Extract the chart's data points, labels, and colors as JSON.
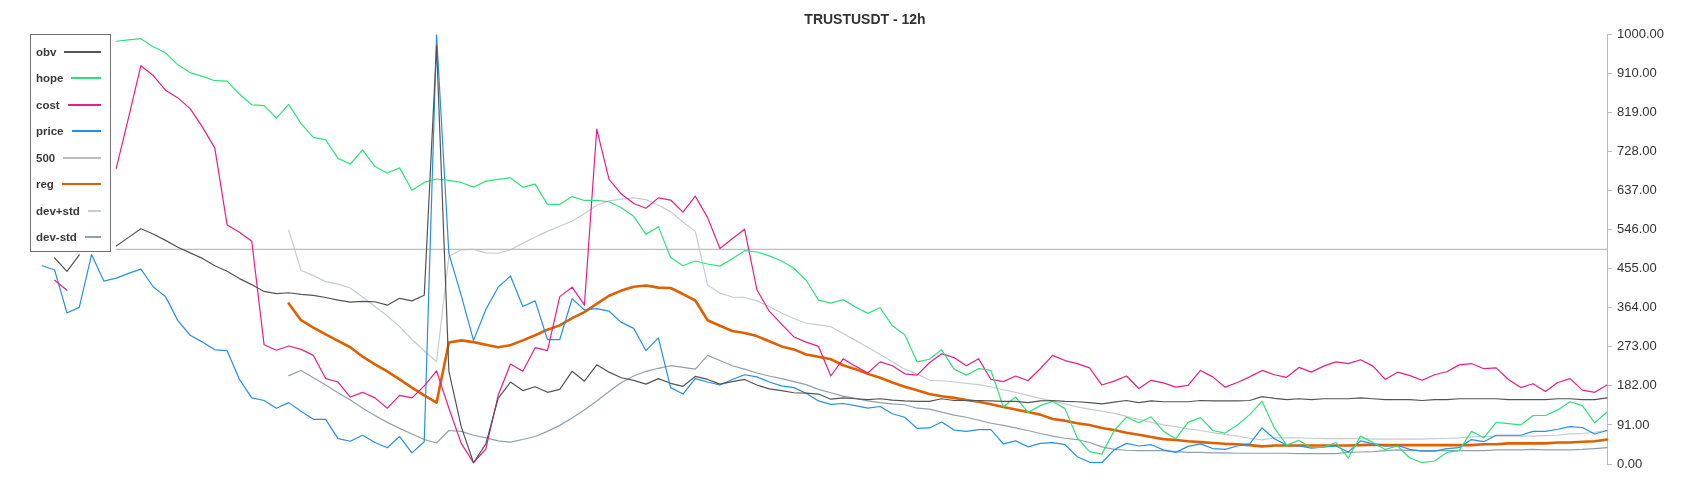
{
  "chart_data": {
    "type": "line",
    "title": "TRUSTUSDT - 12h",
    "legend": "top left",
    "tick_labels": "y",
    "categories": [
      null,
      null,
      null,
      null,
      null,
      null,
      null,
      null,
      null,
      null,
      null,
      null,
      null,
      null,
      null,
      null,
      null,
      null,
      null,
      null,
      null,
      null,
      null,
      null,
      null,
      null,
      null,
      null,
      null,
      null,
      null,
      null,
      null,
      null,
      null,
      null,
      null,
      null,
      null,
      null,
      null,
      null,
      null,
      null,
      null,
      null,
      null,
      null,
      null,
      null,
      null,
      null,
      null,
      null,
      null,
      null,
      null,
      null,
      null,
      null,
      null,
      null,
      null,
      null,
      null,
      null,
      null,
      null,
      null,
      null,
      null,
      null,
      null,
      null,
      null,
      null,
      null,
      null,
      null,
      null,
      null,
      null,
      null,
      null,
      null,
      null,
      null,
      null,
      null,
      null,
      null,
      null,
      null,
      null,
      null,
      null,
      null,
      null,
      null,
      null,
      null,
      null,
      null,
      null,
      null,
      null,
      null,
      null,
      null,
      null,
      null,
      null,
      null,
      null,
      null,
      null,
      null,
      null,
      null,
      null,
      null,
      null,
      null,
      null,
      null,
      null,
      null,
      null,
      null
    ],
    "ylim": [
      0,
      1000
    ],
    "yticks": [
      {
        "value": 0,
        "label": "0.00"
      },
      {
        "value": 91,
        "label": "91.00"
      },
      {
        "value": 182,
        "label": "182.00"
      },
      {
        "value": 273,
        "label": "273.00"
      },
      {
        "value": 364,
        "label": "364.00"
      },
      {
        "value": 455,
        "label": "455.00"
      },
      {
        "value": 546,
        "label": "546.00"
      },
      {
        "value": 637,
        "label": "637.00"
      },
      {
        "value": 728,
        "label": "728.00"
      },
      {
        "value": 819,
        "label": "819.00"
      },
      {
        "value": 910,
        "label": "910.00"
      },
      {
        "value": 1000,
        "label": "1000.00"
      }
    ],
    "series": [
      {
        "name": "obv",
        "color": "#545454",
        "values": [
          null,
          null,
          480,
          449,
          487,
          null,
          null,
          508,
          528,
          548,
          536,
          521,
          505,
          492,
          479,
          462,
          449,
          432,
          418,
          402,
          397,
          399,
          395,
          393,
          388,
          382,
          377,
          379,
          378,
          370,
          386,
          380,
          393,
          975,
          216,
          87,
          3,
          47,
          153,
          191,
          171,
          180,
          167,
          174,
          216,
          193,
          231,
          214,
          201,
          195,
          186,
          199,
          188,
          181,
          204,
          197,
          186,
          192,
          197,
          184,
          175,
          171,
          166,
          165,
          163,
          151,
          154,
          152,
          150,
          152,
          149,
          147,
          146,
          146,
          152,
          148,
          148,
          148,
          147,
          146,
          146,
          143,
          147,
          148,
          146,
          145,
          143,
          140,
          144,
          148,
          143,
          147,
          145,
          145,
          145,
          148,
          147,
          147,
          147,
          148,
          157,
          153,
          150,
          152,
          150,
          152,
          152,
          152,
          154,
          152,
          150,
          150,
          150,
          148,
          150,
          150,
          152,
          152,
          152,
          152,
          150,
          150,
          150,
          150,
          152,
          152,
          150,
          150,
          154
        ]
      },
      {
        "name": "hope",
        "color": "#2ee27a",
        "values": [
          null,
          null,
          null,
          null,
          null,
          null,
          null,
          985,
          988,
          991,
          972,
          958,
          930,
          912,
          903,
          893,
          892,
          862,
          837,
          835,
          806,
          838,
          793,
          761,
          755,
          712,
          699,
          732,
          693,
          678,
          690,
          638,
          656,
          664,
          661,
          656,
          645,
          659,
          663,
          667,
          645,
          652,
          605,
          605,
          623,
          614,
          614,
          611,
          597,
          577,
          535,
          553,
          481,
          462,
          473,
          466,
          461,
          478,
          497,
          494,
          485,
          473,
          456,
          428,
          382,
          375,
          383,
          366,
          351,
          364,
          322,
          301,
          238,
          244,
          266,
          221,
          207,
          222,
          218,
          133,
          156,
          120,
          136,
          146,
          129,
          61,
          29,
          23,
          78,
          109,
          96,
          110,
          76,
          59,
          97,
          108,
          78,
          72,
          91,
          115,
          146,
          84,
          44,
          55,
          38,
          39,
          50,
          14,
          65,
          50,
          34,
          42,
          14,
          3,
          7,
          27,
          31,
          76,
          61,
          97,
          94,
          91,
          113,
          113,
          126,
          145,
          136,
          96,
          121
        ]
      },
      {
        "name": "cost",
        "color": "#e91e84",
        "values": [
          null,
          null,
          428,
          405,
          null,
          null,
          null,
          689,
          807,
          928,
          905,
          871,
          853,
          828,
          785,
          736,
          557,
          540,
          519,
          278,
          265,
          275,
          267,
          253,
          199,
          191,
          156,
          167,
          154,
          130,
          160,
          154,
          182,
          217,
          130,
          48,
          3,
          35,
          160,
          233,
          216,
          271,
          264,
          390,
          412,
          370,
          780,
          663,
          629,
          607,
          596,
          620,
          615,
          587,
          624,
          574,
          502,
          525,
          547,
          406,
          356,
          326,
          296,
          284,
          274,
          205,
          245,
          228,
          212,
          238,
          229,
          210,
          207,
          236,
          257,
          248,
          229,
          245,
          197,
          192,
          205,
          194,
          222,
          253,
          241,
          234,
          224,
          184,
          193,
          205,
          176,
          195,
          189,
          179,
          183,
          218,
          203,
          179,
          190,
          203,
          218,
          208,
          202,
          225,
          214,
          228,
          238,
          234,
          243,
          228,
          197,
          214,
          206,
          195,
          208,
          215,
          231,
          234,
          222,
          224,
          197,
          178,
          187,
          169,
          190,
          199,
          172,
          167,
          184
        ]
      },
      {
        "name": "price",
        "color": "#2590e8",
        "values": [
          null,
          462,
          452,
          352,
          365,
          488,
          426,
          433,
          444,
          454,
          413,
          390,
          334,
          300,
          284,
          266,
          264,
          197,
          154,
          148,
          130,
          143,
          123,
          104,
          104,
          59,
          53,
          67,
          50,
          38,
          64,
          26,
          52,
          1000,
          490,
          393,
          288,
          360,
          412,
          438,
          367,
          380,
          290,
          290,
          385,
          359,
          362,
          356,
          330,
          316,
          264,
          294,
          178,
          163,
          199,
          191,
          184,
          197,
          208,
          203,
          191,
          182,
          178,
          165,
          147,
          139,
          141,
          136,
          130,
          134,
          117,
          109,
          83,
          84,
          98,
          79,
          76,
          80,
          80,
          47,
          54,
          40,
          48,
          50,
          45,
          17,
          4,
          3,
          33,
          48,
          42,
          45,
          33,
          27,
          41,
          47,
          36,
          34,
          42,
          47,
          84,
          59,
          44,
          42,
          37,
          39,
          42,
          28,
          54,
          47,
          42,
          43,
          34,
          30,
          30,
          36,
          38,
          57,
          52,
          67,
          67,
          67,
          76,
          76,
          81,
          87,
          85,
          70,
          78
        ]
      },
      {
        "name": "500",
        "color": "#bdbdbd",
        "values": [
          null,
          null,
          null,
          null,
          null,
          null,
          null,
          500,
          500,
          500,
          500,
          500,
          500,
          500,
          500,
          500,
          500,
          500,
          500,
          500,
          500,
          500,
          500,
          500,
          500,
          500,
          500,
          500,
          500,
          500,
          500,
          500,
          500,
          500,
          500,
          500,
          500,
          500,
          500,
          500,
          500,
          500,
          500,
          500,
          500,
          500,
          500,
          500,
          500,
          500,
          500,
          500,
          500,
          500,
          500,
          500,
          500,
          500,
          500,
          500,
          500,
          500,
          500,
          500,
          500,
          500,
          500,
          500,
          500,
          500,
          500,
          500,
          500,
          500,
          500,
          500,
          500,
          500,
          500,
          500,
          500,
          500,
          500,
          500,
          500,
          500,
          500,
          500,
          500,
          500,
          500,
          500,
          500,
          500,
          500,
          500,
          500,
          500,
          500,
          500,
          500,
          500,
          500,
          500,
          500,
          500,
          500,
          500,
          500,
          500,
          500,
          500,
          500,
          500,
          500,
          500,
          500,
          500,
          500,
          500,
          500,
          500,
          500,
          500,
          500,
          500,
          500,
          500,
          500
        ]
      },
      {
        "name": "reg",
        "color": "#e06000",
        "values": [
          null,
          null,
          null,
          null,
          null,
          null,
          null,
          null,
          null,
          null,
          null,
          null,
          null,
          null,
          null,
          null,
          null,
          null,
          null,
          null,
          null,
          374,
          335,
          318,
          302,
          287,
          272,
          250,
          232,
          216,
          197,
          178,
          160,
          143,
          283,
          288,
          284,
          278,
          272,
          277,
          288,
          300,
          313,
          323,
          340,
          354,
          373,
          392,
          404,
          413,
          416,
          411,
          410,
          396,
          381,
          335,
          322,
          310,
          305,
          298,
          286,
          274,
          267,
          255,
          250,
          244,
          230,
          221,
          210,
          201,
          190,
          180,
          172,
          163,
          158,
          154,
          149,
          145,
          139,
          133,
          127,
          121,
          115,
          105,
          101,
          95,
          91,
          84,
          79,
          73,
          68,
          63,
          58,
          56,
          53,
          51,
          49,
          47,
          46,
          44,
          41,
          43,
          43,
          43,
          43,
          43,
          43,
          43,
          44,
          45,
          44,
          44,
          44,
          44,
          44,
          44,
          44,
          44,
          46,
          46,
          48,
          48,
          48,
          48,
          50,
          50,
          52,
          53,
          57
        ]
      },
      {
        "name": "dev+std",
        "color": "#c5ccd3",
        "values": [
          null,
          null,
          null,
          null,
          null,
          null,
          null,
          null,
          null,
          null,
          null,
          null,
          null,
          null,
          null,
          null,
          null,
          null,
          null,
          null,
          null,
          545,
          451,
          439,
          425,
          419,
          410,
          389,
          367,
          345,
          320,
          290,
          264,
          238,
          484,
          499,
          500,
          492,
          491,
          499,
          514,
          529,
          542,
          554,
          566,
          583,
          603,
          613,
          617,
          620,
          616,
          603,
          588,
          564,
          542,
          417,
          398,
          389,
          388,
          380,
          367,
          352,
          339,
          328,
          324,
          320,
          304,
          288,
          272,
          255,
          238,
          221,
          210,
          195,
          194,
          191,
          188,
          185,
          180,
          173,
          167,
          160,
          153,
          147,
          140,
          133,
          128,
          123,
          118,
          111,
          104,
          97,
          91,
          87,
          82,
          78,
          73,
          69,
          65,
          60,
          56,
          61,
          61,
          61,
          60,
          59,
          59,
          59,
          59,
          58,
          58,
          58,
          58,
          58,
          59,
          60,
          61,
          63,
          64,
          65,
          65,
          65,
          65,
          66,
          67,
          70,
          71,
          74,
          78
        ]
      },
      {
        "name": "dev-std",
        "color": "#90a0ac",
        "values": [
          null,
          null,
          null,
          null,
          null,
          null,
          null,
          null,
          null,
          null,
          null,
          null,
          null,
          null,
          null,
          null,
          null,
          null,
          null,
          null,
          null,
          206,
          218,
          201,
          184,
          166,
          149,
          130,
          113,
          97,
          83,
          70,
          57,
          49,
          78,
          76,
          67,
          61,
          54,
          51,
          57,
          64,
          76,
          90,
          107,
          126,
          147,
          169,
          190,
          205,
          216,
          223,
          229,
          225,
          221,
          253,
          241,
          229,
          221,
          212,
          205,
          199,
          192,
          185,
          174,
          166,
          158,
          153,
          147,
          143,
          140,
          138,
          130,
          128,
          121,
          114,
          109,
          102,
          95,
          90,
          84,
          78,
          71,
          65,
          60,
          57,
          50,
          40,
          34,
          32,
          31,
          31,
          31,
          29,
          27,
          27,
          26,
          26,
          25,
          25,
          25,
          25,
          25,
          24,
          24,
          24,
          24,
          27,
          28,
          29,
          31,
          33,
          31,
          31,
          31,
          31,
          31,
          31,
          31,
          33,
          33,
          33,
          34,
          33,
          33,
          33,
          34,
          36,
          38
        ]
      }
    ]
  }
}
